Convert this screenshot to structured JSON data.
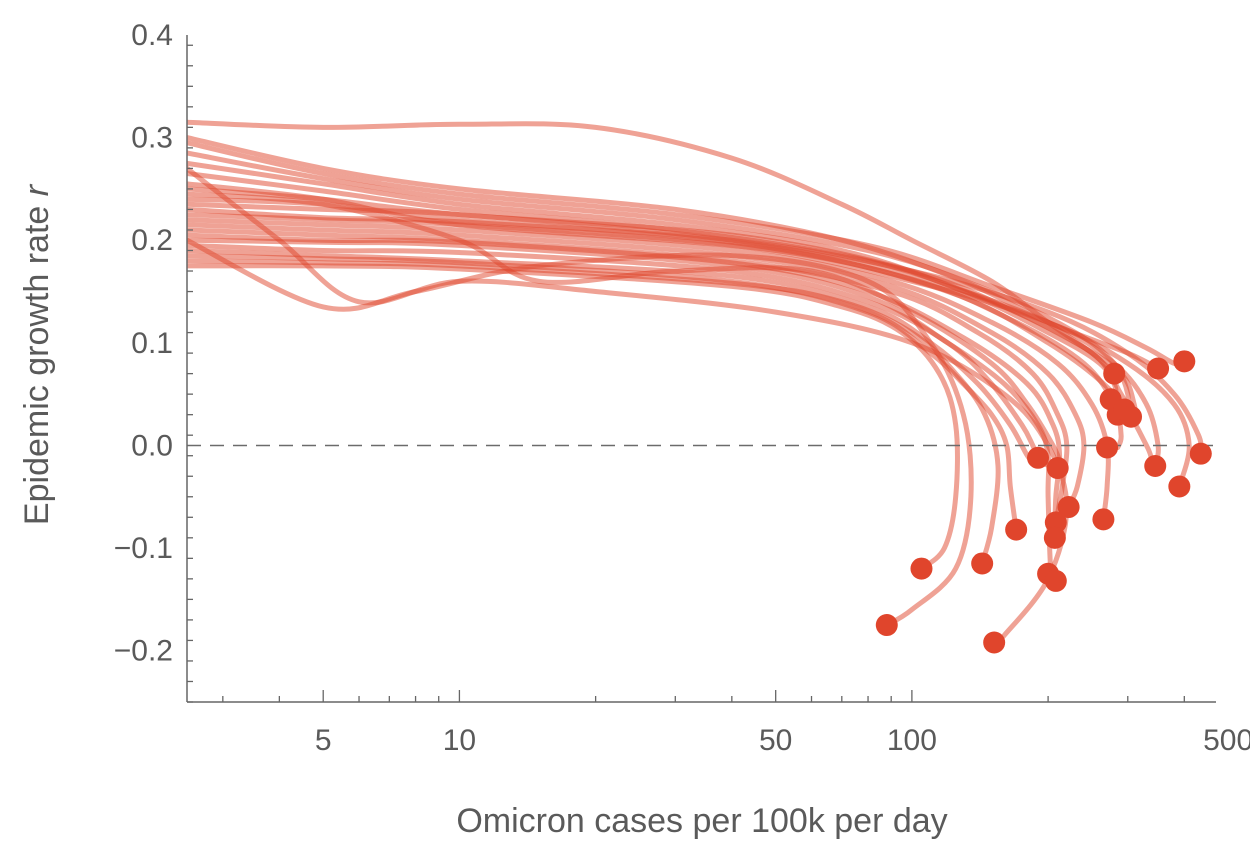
{
  "chart_data": {
    "type": "line",
    "title": "",
    "xlabel": "Omicron cases per 100k per day",
    "ylabel_prefix": "Epidemic growth rate ",
    "ylabel_var": "r",
    "x_scale": "log",
    "xlim": [
      2.5,
      470
    ],
    "ylim": [
      -0.25,
      0.4
    ],
    "x_ticks": [
      5,
      10,
      50,
      100,
      500
    ],
    "x_tick_labels": [
      "5",
      "10",
      "50",
      "100",
      "500"
    ],
    "y_ticks": [
      -0.2,
      -0.1,
      0.0,
      0.1,
      0.2,
      0.3,
      0.4
    ],
    "y_tick_labels": [
      "−0.2",
      "−0.1",
      "0.0",
      "0.1",
      "0.2",
      "0.3",
      "0.4"
    ],
    "reference_line": {
      "y": 0,
      "style": "dashed"
    },
    "grid": false,
    "legend": "none",
    "colors": {
      "line": "#e0452c",
      "marker": "#e0452c",
      "reference": "#6b6b6b",
      "axis": "#666666",
      "text": "#5a5a5a"
    },
    "series": [
      {
        "points": [
          [
            2.5,
            0.315
          ],
          [
            5,
            0.31
          ],
          [
            10,
            0.313
          ],
          [
            20,
            0.31
          ],
          [
            40,
            0.28
          ],
          [
            70,
            0.235
          ],
          [
            100,
            0.2
          ],
          [
            150,
            0.16
          ],
          [
            200,
            0.12
          ],
          [
            250,
            0.09
          ],
          [
            280,
            0.07
          ]
        ]
      },
      {
        "points": [
          [
            2.5,
            0.3
          ],
          [
            5,
            0.27
          ],
          [
            10,
            0.25
          ],
          [
            30,
            0.23
          ],
          [
            70,
            0.2
          ],
          [
            130,
            0.16
          ],
          [
            200,
            0.12
          ],
          [
            300,
            0.09
          ],
          [
            350,
            0.075
          ]
        ]
      },
      {
        "points": [
          [
            2.5,
            0.295
          ],
          [
            5,
            0.265
          ],
          [
            10,
            0.245
          ],
          [
            30,
            0.225
          ],
          [
            80,
            0.195
          ],
          [
            150,
            0.155
          ],
          [
            250,
            0.12
          ],
          [
            330,
            0.095
          ],
          [
            380,
            0.08
          ],
          [
            400,
            0.082
          ]
        ]
      },
      {
        "points": [
          [
            2.5,
            0.285
          ],
          [
            5,
            0.26
          ],
          [
            10,
            0.24
          ],
          [
            30,
            0.22
          ],
          [
            80,
            0.19
          ],
          [
            150,
            0.15
          ],
          [
            230,
            0.11
          ],
          [
            280,
            0.08
          ],
          [
            300,
            0.05
          ],
          [
            295,
            0.035
          ]
        ]
      },
      {
        "points": [
          [
            2.5,
            0.275
          ],
          [
            5,
            0.255
          ],
          [
            10,
            0.235
          ],
          [
            30,
            0.215
          ],
          [
            70,
            0.19
          ],
          [
            130,
            0.15
          ],
          [
            200,
            0.11
          ],
          [
            260,
            0.08
          ],
          [
            290,
            0.05
          ],
          [
            305,
            0.03
          ]
        ]
      },
      {
        "points": [
          [
            2.5,
            0.265
          ],
          [
            5,
            0.248
          ],
          [
            10,
            0.23
          ],
          [
            30,
            0.21
          ],
          [
            80,
            0.18
          ],
          [
            150,
            0.14
          ],
          [
            230,
            0.1
          ],
          [
            290,
            0.07
          ],
          [
            310,
            0.04
          ],
          [
            310,
            0.028
          ]
        ]
      },
      {
        "points": [
          [
            2.5,
            0.25
          ],
          [
            5,
            0.24
          ],
          [
            10,
            0.225
          ],
          [
            40,
            0.205
          ],
          [
            100,
            0.17
          ],
          [
            170,
            0.13
          ],
          [
            250,
            0.09
          ],
          [
            280,
            0.06
          ],
          [
            280,
            0.045
          ]
        ]
      },
      {
        "points": [
          [
            2.5,
            0.24
          ],
          [
            5,
            0.235
          ],
          [
            10,
            0.22
          ],
          [
            40,
            0.2
          ],
          [
            100,
            0.17
          ],
          [
            200,
            0.13
          ],
          [
            300,
            0.09
          ],
          [
            380,
            0.05
          ],
          [
            430,
            0.01
          ],
          [
            435,
            -0.008
          ]
        ]
      },
      {
        "points": [
          [
            2.5,
            0.235
          ],
          [
            5,
            0.23
          ],
          [
            10,
            0.225
          ],
          [
            40,
            0.2
          ],
          [
            100,
            0.165
          ],
          [
            200,
            0.12
          ],
          [
            280,
            0.08
          ],
          [
            330,
            0.04
          ],
          [
            350,
            0.0
          ],
          [
            345,
            -0.02
          ]
        ]
      },
      {
        "points": [
          [
            2.5,
            0.23
          ],
          [
            5,
            0.222
          ],
          [
            10,
            0.218
          ],
          [
            40,
            0.198
          ],
          [
            100,
            0.162
          ],
          [
            170,
            0.12
          ],
          [
            240,
            0.08
          ],
          [
            280,
            0.04
          ],
          [
            290,
            0.01
          ],
          [
            285,
            -0.002
          ]
        ]
      },
      {
        "points": [
          [
            2.5,
            0.225
          ],
          [
            5,
            0.22
          ],
          [
            10,
            0.215
          ],
          [
            40,
            0.195
          ],
          [
            100,
            0.16
          ],
          [
            200,
            0.12
          ],
          [
            300,
            0.08
          ],
          [
            380,
            0.04
          ],
          [
            410,
            0.0
          ],
          [
            390,
            -0.04
          ]
        ]
      },
      {
        "points": [
          [
            2.5,
            0.22
          ],
          [
            5,
            0.215
          ],
          [
            10,
            0.21
          ],
          [
            40,
            0.19
          ],
          [
            90,
            0.16
          ],
          [
            150,
            0.12
          ],
          [
            210,
            0.08
          ],
          [
            250,
            0.04
          ],
          [
            270,
            0.0
          ],
          [
            270,
            -0.04
          ],
          [
            265,
            -0.072
          ]
        ]
      },
      {
        "points": [
          [
            2.5,
            0.215
          ],
          [
            5,
            0.21
          ],
          [
            10,
            0.205
          ],
          [
            40,
            0.185
          ],
          [
            90,
            0.155
          ],
          [
            150,
            0.11
          ],
          [
            200,
            0.07
          ],
          [
            230,
            0.03
          ],
          [
            240,
            0.0
          ],
          [
            232,
            -0.04
          ],
          [
            222,
            -0.06
          ]
        ]
      },
      {
        "points": [
          [
            2.5,
            0.21
          ],
          [
            5,
            0.205
          ],
          [
            10,
            0.2
          ],
          [
            40,
            0.18
          ],
          [
            90,
            0.15
          ],
          [
            140,
            0.11
          ],
          [
            185,
            0.07
          ],
          [
            210,
            0.03
          ],
          [
            220,
            0.0
          ],
          [
            215,
            -0.04
          ],
          [
            208,
            -0.075
          ]
        ]
      },
      {
        "points": [
          [
            2.5,
            0.205
          ],
          [
            5,
            0.2
          ],
          [
            10,
            0.198
          ],
          [
            40,
            0.178
          ],
          [
            80,
            0.15
          ],
          [
            130,
            0.105
          ],
          [
            180,
            0.06
          ],
          [
            205,
            0.02
          ],
          [
            212,
            -0.01
          ],
          [
            208,
            -0.05
          ],
          [
            207,
            -0.09
          ]
        ]
      },
      {
        "points": [
          [
            2.5,
            0.2
          ],
          [
            5,
            0.198
          ],
          [
            10,
            0.195
          ],
          [
            40,
            0.175
          ],
          [
            80,
            0.145
          ],
          [
            120,
            0.1
          ],
          [
            160,
            0.06
          ],
          [
            190,
            0.02
          ],
          [
            200,
            -0.01
          ],
          [
            200,
            -0.05
          ],
          [
            203,
            -0.125
          ],
          [
            208,
            -0.132
          ]
        ]
      },
      {
        "points": [
          [
            2.5,
            0.195
          ],
          [
            5,
            0.19
          ],
          [
            10,
            0.188
          ],
          [
            40,
            0.17
          ],
          [
            80,
            0.14
          ],
          [
            120,
            0.1
          ],
          [
            150,
            0.06
          ],
          [
            175,
            0.02
          ],
          [
            185,
            0.0
          ],
          [
            190,
            -0.012
          ]
        ]
      },
      {
        "points": [
          [
            2.5,
            0.19
          ],
          [
            5,
            0.185
          ],
          [
            10,
            0.18
          ],
          [
            40,
            0.165
          ],
          [
            80,
            0.135
          ],
          [
            110,
            0.1
          ],
          [
            140,
            0.06
          ],
          [
            165,
            0.02
          ],
          [
            180,
            -0.01
          ],
          [
            187,
            -0.015
          ],
          [
            210,
            -0.022
          ]
        ]
      },
      {
        "points": [
          [
            2.5,
            0.185
          ],
          [
            5,
            0.182
          ],
          [
            10,
            0.178
          ],
          [
            40,
            0.16
          ],
          [
            80,
            0.13
          ],
          [
            110,
            0.09
          ],
          [
            130,
            0.06
          ],
          [
            150,
            0.03
          ],
          [
            162,
            0.0
          ],
          [
            165,
            -0.04
          ],
          [
            170,
            -0.082
          ]
        ]
      },
      {
        "points": [
          [
            2.5,
            0.18
          ],
          [
            5,
            0.178
          ],
          [
            10,
            0.175
          ],
          [
            40,
            0.158
          ],
          [
            70,
            0.14
          ],
          [
            100,
            0.11
          ],
          [
            125,
            0.07
          ],
          [
            145,
            0.03
          ],
          [
            155,
            -0.02
          ],
          [
            150,
            -0.08
          ],
          [
            143,
            -0.115
          ]
        ]
      },
      {
        "points": [
          [
            2.5,
            0.175
          ],
          [
            5,
            0.175
          ],
          [
            10,
            0.172
          ],
          [
            40,
            0.155
          ],
          [
            70,
            0.135
          ],
          [
            95,
            0.11
          ],
          [
            115,
            0.07
          ],
          [
            125,
            0.02
          ],
          [
            125,
            -0.05
          ],
          [
            118,
            -0.1
          ],
          [
            105,
            -0.12
          ]
        ]
      },
      {
        "points": [
          [
            2.5,
            0.2
          ],
          [
            5,
            0.135
          ],
          [
            8,
            0.15
          ],
          [
            15,
            0.175
          ],
          [
            40,
            0.185
          ],
          [
            80,
            0.16
          ],
          [
            110,
            0.1
          ],
          [
            130,
            0.03
          ],
          [
            135,
            -0.05
          ],
          [
            125,
            -0.12
          ],
          [
            100,
            -0.16
          ],
          [
            88,
            -0.175
          ]
        ]
      },
      {
        "points": [
          [
            2.5,
            0.27
          ],
          [
            4,
            0.2
          ],
          [
            6,
            0.14
          ],
          [
            10,
            0.16
          ],
          [
            20,
            0.15
          ],
          [
            50,
            0.13
          ],
          [
            100,
            0.1
          ],
          [
            160,
            0.05
          ],
          [
            200,
            0.0
          ],
          [
            220,
            -0.06
          ],
          [
            200,
            -0.13
          ],
          [
            160,
            -0.185
          ],
          [
            152,
            -0.192
          ]
        ]
      },
      {
        "points": [
          [
            2.5,
            0.255
          ],
          [
            5,
            0.24
          ],
          [
            10,
            0.215
          ],
          [
            50,
            0.19
          ],
          [
            120,
            0.15
          ],
          [
            200,
            0.1
          ],
          [
            280,
            0.05
          ],
          [
            330,
            0.0
          ],
          [
            340,
            -0.02
          ]
        ]
      },
      {
        "points": [
          [
            2.5,
            0.245
          ],
          [
            5,
            0.235
          ],
          [
            10,
            0.2
          ],
          [
            15,
            0.16
          ],
          [
            30,
            0.17
          ],
          [
            60,
            0.17
          ],
          [
            100,
            0.13
          ],
          [
            150,
            0.08
          ],
          [
            180,
            0.04
          ],
          [
            205,
            0.0
          ],
          [
            215,
            -0.022
          ]
        ]
      }
    ],
    "endpoints": [
      [
        88,
        -0.175
      ],
      [
        105,
        -0.12
      ],
      [
        143,
        -0.115
      ],
      [
        152,
        -0.192
      ],
      [
        170,
        -0.082
      ],
      [
        190,
        -0.012
      ],
      [
        210,
        -0.022
      ],
      [
        200,
        -0.125
      ],
      [
        208,
        -0.132
      ],
      [
        208,
        -0.075
      ],
      [
        207,
        -0.09
      ],
      [
        222,
        -0.06
      ],
      [
        265,
        -0.072
      ],
      [
        270,
        -0.002
      ],
      [
        275,
        0.045
      ],
      [
        285,
        0.03
      ],
      [
        295,
        0.035
      ],
      [
        305,
        0.028
      ],
      [
        280,
        0.07
      ],
      [
        350,
        0.075
      ],
      [
        400,
        0.082
      ],
      [
        345,
        -0.02
      ],
      [
        390,
        -0.04
      ],
      [
        435,
        -0.008
      ]
    ]
  }
}
